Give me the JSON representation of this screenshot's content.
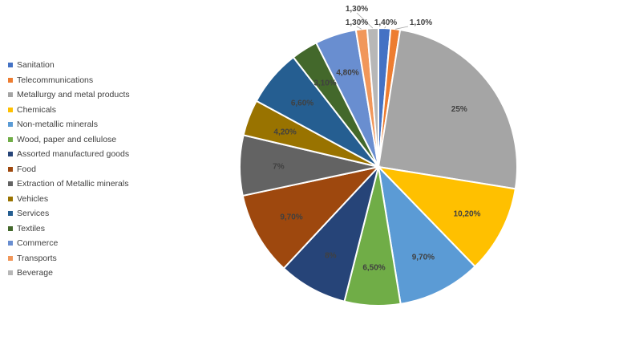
{
  "chart_data": {
    "type": "pie",
    "legend_position": "left",
    "slices": [
      {
        "name": "Sanitation",
        "value": 1.4,
        "label": "1,40%",
        "color": "#4472C4"
      },
      {
        "name": "Telecommunications",
        "value": 1.1,
        "label": "1,10%",
        "color": "#ED7D31"
      },
      {
        "name": "Metallurgy and metal products",
        "value": 25,
        "label": "25%",
        "color": "#A5A5A5"
      },
      {
        "name": "Chemicals",
        "value": 10.2,
        "label": "10,20%",
        "color": "#FFC000"
      },
      {
        "name": "Non-metallic minerals",
        "value": 9.7,
        "label": "9,70%",
        "color": "#5B9BD5"
      },
      {
        "name": "Wood, paper and cellulose",
        "value": 6.5,
        "label": "6,50%",
        "color": "#70AD47"
      },
      {
        "name": "Assorted manufactured goods",
        "value": 8,
        "label": "8%",
        "color": "#264478"
      },
      {
        "name": "Food",
        "value": 9.7,
        "label": "9,70%",
        "color": "#9E480E"
      },
      {
        "name": "Extraction of Metallic minerals",
        "value": 7,
        "label": "7%",
        "color": "#636363"
      },
      {
        "name": "Vehicles",
        "value": 4.2,
        "label": "4,20%",
        "color": "#997300"
      },
      {
        "name": "Services",
        "value": 6.6,
        "label": "6,60%",
        "color": "#255E91"
      },
      {
        "name": "Textiles",
        "value": 3.1,
        "label": "3,10%",
        "color": "#43682B"
      },
      {
        "name": "Commerce",
        "value": 4.8,
        "label": "4,80%",
        "color": "#698ED0"
      },
      {
        "name": "Transports",
        "value": 1.3,
        "label": "1,30%",
        "color": "#F1975A"
      },
      {
        "name": "Beverage",
        "value": 1.3,
        "label": "1,30%",
        "color": "#B7B7B7"
      }
    ]
  }
}
